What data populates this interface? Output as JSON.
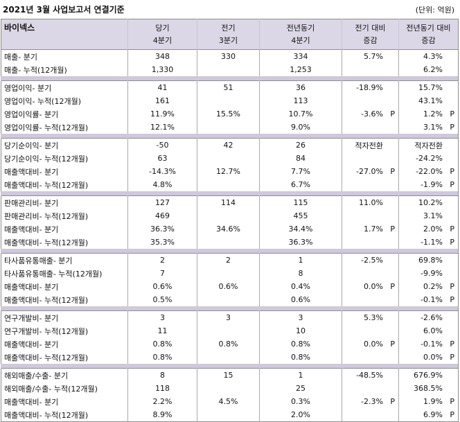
{
  "title": "2021년 3월 사업보고서 연결기준",
  "unit": "(단위: 억원)",
  "header": {
    "company": "바이넥스",
    "col1": [
      "당기",
      "4분기"
    ],
    "col2": [
      "전기",
      "3분기"
    ],
    "col3": [
      "전년동기",
      "4분기"
    ],
    "col4": [
      "전기 대비",
      "증감"
    ],
    "col5": [
      "전년동기 대비",
      "증감"
    ]
  },
  "groups": [
    {
      "rows": [
        {
          "label": "매출- 분기",
          "cur": "348",
          "prev": "330",
          "yoy": "334",
          "qoq": "5.7%",
          "qoq_p": "",
          "yoyc": "4.3%",
          "yoyc_p": ""
        },
        {
          "label": "매출- 누적(12개월)",
          "cur": "1,330",
          "prev": "",
          "yoy": "1,253",
          "qoq": "",
          "qoq_p": "",
          "yoyc": "6.2%",
          "yoyc_p": ""
        }
      ]
    },
    {
      "rows": [
        {
          "label": "영업이익- 분기",
          "cur": "41",
          "prev": "51",
          "yoy": "36",
          "qoq": "-18.9%",
          "qoq_p": "",
          "yoyc": "15.7%",
          "yoyc_p": ""
        },
        {
          "label": "영업이익- 누적(12개월)",
          "cur": "161",
          "prev": "",
          "yoy": "113",
          "qoq": "",
          "qoq_p": "",
          "yoyc": "43.1%",
          "yoyc_p": ""
        },
        {
          "label": "영업이익률- 분기",
          "cur": "11.9%",
          "prev": "15.5%",
          "yoy": "10.7%",
          "qoq": "-3.6%",
          "qoq_p": "P",
          "yoyc": "1.2%",
          "yoyc_p": "P"
        },
        {
          "label": "영업이익률- 누적(12개월)",
          "cur": "12.1%",
          "prev": "",
          "yoy": "9.0%",
          "qoq": "",
          "qoq_p": "",
          "yoyc": "3.1%",
          "yoyc_p": "P"
        }
      ]
    },
    {
      "rows": [
        {
          "label": "당기순이익- 분기",
          "cur": "-50",
          "prev": "42",
          "yoy": "26",
          "qoq": "적자전환",
          "qoq_p": "",
          "yoyc": "적자전환",
          "yoyc_p": ""
        },
        {
          "label": "당기순이익- 누적(12개월)",
          "cur": "63",
          "prev": "",
          "yoy": "84",
          "qoq": "",
          "qoq_p": "",
          "yoyc": "-24.2%",
          "yoyc_p": ""
        },
        {
          "label": "매출액대비- 분기",
          "cur": "-14.3%",
          "prev": "12.7%",
          "yoy": "7.7%",
          "qoq": "-27.0%",
          "qoq_p": "P",
          "yoyc": "-22.0%",
          "yoyc_p": "P"
        },
        {
          "label": "매출액대비- 누적(12개월)",
          "cur": "4.8%",
          "prev": "",
          "yoy": "6.7%",
          "qoq": "",
          "qoq_p": "",
          "yoyc": "-1.9%",
          "yoyc_p": "P"
        }
      ]
    },
    {
      "rows": [
        {
          "label": "판매관리비- 분기",
          "cur": "127",
          "prev": "114",
          "yoy": "115",
          "qoq": "11.0%",
          "qoq_p": "",
          "yoyc": "10.2%",
          "yoyc_p": ""
        },
        {
          "label": "판매관리비- 누적(12개월)",
          "cur": "469",
          "prev": "",
          "yoy": "455",
          "qoq": "",
          "qoq_p": "",
          "yoyc": "3.1%",
          "yoyc_p": ""
        },
        {
          "label": "매출액대비- 분기",
          "cur": "36.3%",
          "prev": "34.6%",
          "yoy": "34.4%",
          "qoq": "1.7%",
          "qoq_p": "P",
          "yoyc": "2.0%",
          "yoyc_p": "P"
        },
        {
          "label": "매출액대비- 누적(12개월)",
          "cur": "35.3%",
          "prev": "",
          "yoy": "36.3%",
          "qoq": "",
          "qoq_p": "",
          "yoyc": "-1.1%",
          "yoyc_p": "P"
        }
      ]
    },
    {
      "rows": [
        {
          "label": "타사품유통매출- 분기",
          "cur": "2",
          "prev": "2",
          "yoy": "1",
          "qoq": "-2.5%",
          "qoq_p": "",
          "yoyc": "69.8%",
          "yoyc_p": ""
        },
        {
          "label": "타사품유통매출- 누적(12개월)",
          "cur": "7",
          "prev": "",
          "yoy": "8",
          "qoq": "",
          "qoq_p": "",
          "yoyc": "-9.9%",
          "yoyc_p": ""
        },
        {
          "label": "매출액대비- 분기",
          "cur": "0.6%",
          "prev": "0.6%",
          "yoy": "0.4%",
          "qoq": "0.0%",
          "qoq_p": "P",
          "yoyc": "0.2%",
          "yoyc_p": "P"
        },
        {
          "label": "매출액대비- 누적(12개월)",
          "cur": "0.5%",
          "prev": "",
          "yoy": "0.6%",
          "qoq": "",
          "qoq_p": "",
          "yoyc": "-0.1%",
          "yoyc_p": "P"
        }
      ]
    },
    {
      "rows": [
        {
          "label": "연구개발비- 분기",
          "cur": "3",
          "prev": "3",
          "yoy": "3",
          "qoq": "5.3%",
          "qoq_p": "",
          "yoyc": "-2.6%",
          "yoyc_p": ""
        },
        {
          "label": "연구개발비- 누적(12개월)",
          "cur": "11",
          "prev": "",
          "yoy": "10",
          "qoq": "",
          "qoq_p": "",
          "yoyc": "6.0%",
          "yoyc_p": ""
        },
        {
          "label": "매출액대비- 분기",
          "cur": "0.8%",
          "prev": "0.8%",
          "yoy": "0.8%",
          "qoq": "0.0%",
          "qoq_p": "P",
          "yoyc": "-0.1%",
          "yoyc_p": "P"
        },
        {
          "label": "매출액대비- 누적(12개월)",
          "cur": "0.8%",
          "prev": "",
          "yoy": "0.8%",
          "qoq": "",
          "qoq_p": "",
          "yoyc": "0.0%",
          "yoyc_p": "P"
        }
      ]
    },
    {
      "rows": [
        {
          "label": "해외매출/수출- 분기",
          "cur": "8",
          "prev": "15",
          "yoy": "1",
          "qoq": "-48.5%",
          "qoq_p": "",
          "yoyc": "676.9%",
          "yoyc_p": ""
        },
        {
          "label": "해외매출/수출- 누적(12개월)",
          "cur": "118",
          "prev": "",
          "yoy": "25",
          "qoq": "",
          "qoq_p": "",
          "yoyc": "368.5%",
          "yoyc_p": ""
        },
        {
          "label": "매출액대비- 분기",
          "cur": "2.2%",
          "prev": "4.5%",
          "yoy": "0.3%",
          "qoq": "-2.3%",
          "qoq_p": "P",
          "yoyc": "1.9%",
          "yoyc_p": "P"
        },
        {
          "label": "매출액대비- 누적(12개월)",
          "cur": "8.9%",
          "prev": "",
          "yoy": "2.0%",
          "qoq": "",
          "qoq_p": "",
          "yoyc": "6.9%",
          "yoyc_p": "P"
        }
      ]
    }
  ]
}
